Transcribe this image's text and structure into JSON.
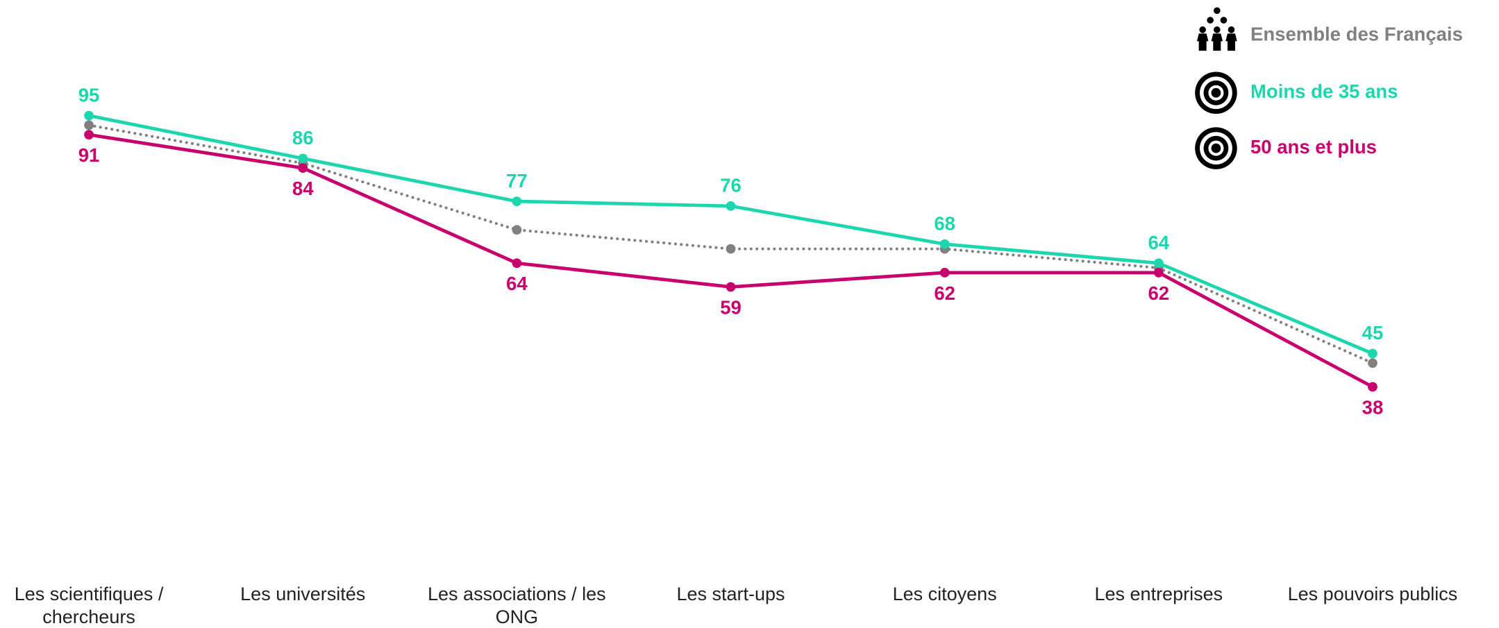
{
  "chart_data": {
    "type": "line",
    "categories": [
      "Les scientifiques / chercheurs",
      "Les universités",
      "Les associations / les ONG",
      "Les start-ups",
      "Les citoyens",
      "Les entreprises",
      "Les pouvoirs publics"
    ],
    "series": [
      {
        "name": "Ensemble des Français",
        "color": "#808080",
        "style": "dotted",
        "values": [
          93,
          85,
          71,
          67,
          67,
          63,
          43
        ]
      },
      {
        "name": "Moins de 35 ans",
        "color": "#1ed6ae",
        "style": "solid",
        "values": [
          95,
          86,
          77,
          76,
          68,
          64,
          45
        ]
      },
      {
        "name": "50 ans et plus",
        "color": "#c8006e",
        "style": "solid",
        "values": [
          91,
          84,
          64,
          59,
          62,
          62,
          38
        ]
      }
    ],
    "ylim": [
      0,
      100
    ],
    "legend": "top-right"
  }
}
